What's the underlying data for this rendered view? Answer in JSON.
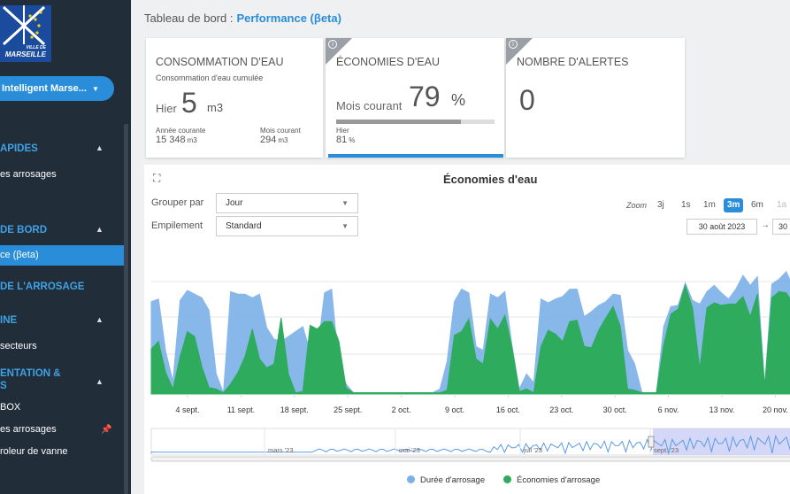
{
  "sidebar": {
    "logo": {
      "line1": "VILLE DE",
      "line2": "MARSEILLE"
    },
    "site_selector": "Intelligent Marse...",
    "sections": [
      {
        "label": "APIDES",
        "items": [
          "es arrosages"
        ]
      },
      {
        "label": " DE BORD",
        "items": [
          "ce (βeta)"
        ]
      },
      {
        "label": " DE L'ARROSAGE",
        "items": []
      },
      {
        "label": "INE",
        "items": [
          "secteurs"
        ]
      },
      {
        "label": "ENTATION &",
        "label2": "S",
        "items": [
          "BOX",
          "es arrosages",
          "roleur de vanne"
        ]
      }
    ]
  },
  "header": {
    "prefix": "Tableau de bord :",
    "page": "Performance (βeta)"
  },
  "cards": {
    "consumption": {
      "title": "CONSOMMATION D'EAU",
      "subtitle": "Consommation d'eau cumulée",
      "main_label": "Hier",
      "main_value": "5",
      "main_unit": "m3",
      "year_label": "Année courante",
      "year_value": "15 348",
      "year_unit": "m3",
      "month_label": "Mois courant",
      "month_value": "294",
      "month_unit": "m3"
    },
    "savings": {
      "title": "ÉCONOMIES D'EAU",
      "main_label": "Mois courant",
      "main_value": "79",
      "main_unit": "%",
      "progress": 0.79,
      "yesterday_label": "Hier",
      "yesterday_value": "81",
      "yesterday_unit": "%"
    },
    "alerts": {
      "title": "NOMBRE D'ALERTES",
      "value": "0"
    }
  },
  "panel": {
    "title": "Économies d'eau",
    "group_label": "Grouper par",
    "group_value": "Jour",
    "stack_label": "Empilement",
    "stack_value": "Standard",
    "zoom_label": "Zoom",
    "zoom_options": [
      "3j",
      "1s",
      "1m",
      "3m",
      "6m",
      "1a"
    ],
    "zoom_selected": "3m",
    "date_from": "30 août 2023",
    "date_to": "30",
    "arrow": "→",
    "icons": [
      "fullscreen-icon",
      "chevron-down-icon"
    ]
  },
  "chart_data": {
    "type": "area",
    "x_ticks": [
      "4 sept.",
      "11 sept.",
      "18 sept.",
      "25 sept.",
      "2 oct.",
      "9 oct.",
      "16 oct.",
      "23 oct.",
      "30 oct.",
      "6 nov.",
      "13 nov.",
      "20 nov."
    ],
    "navigator_labels": [
      "mars '23",
      "mai '23",
      "juil '23",
      "sept. '23"
    ],
    "ylim": [
      0,
      1
    ],
    "series": [
      {
        "name": "Durée d'arrosage",
        "color": "#7cb0e8",
        "values": [
          0.74,
          0.76,
          0.34,
          0.1,
          0.75,
          0.83,
          0.8,
          0.77,
          0.67,
          0.16,
          0.01,
          0.82,
          0.8,
          0.8,
          0.77,
          0.8,
          0.53,
          0.44,
          0.42,
          0.46,
          0.5,
          0.54,
          0.34,
          0.32,
          0.81,
          0.84,
          0.22,
          0.08,
          0.01,
          0.01,
          0.01,
          0.01,
          0.01,
          0.01,
          0.01,
          0.01,
          0.01,
          0.01,
          0.01,
          0.01,
          0.04,
          0.26,
          0.74,
          0.84,
          0.81,
          0.38,
          0.35,
          0.8,
          0.77,
          0.82,
          0.38,
          0.04,
          0.16,
          0.09,
          0.76,
          0.73,
          0.76,
          0.78,
          0.84,
          0.84,
          0.62,
          0.66,
          0.71,
          0.74,
          0.8,
          0.79,
          0.35,
          0.24,
          0.01,
          0.01,
          0.01,
          0.54,
          0.7,
          0.71,
          0.89,
          0.75,
          0.72,
          0.82,
          0.87,
          0.81,
          0.76,
          0.84,
          0.95,
          0.87,
          0.94,
          0.06,
          0.88,
          0.92,
          0.98,
          0.85
        ]
      },
      {
        "name": "Économies d'arrosage",
        "color": "#2eab5c",
        "values": [
          0.36,
          0.42,
          0.17,
          0.04,
          0.3,
          0.5,
          0.46,
          0.22,
          0.05,
          0.04,
          0.01,
          0.08,
          0.17,
          0.3,
          0.52,
          0.28,
          0.21,
          0.24,
          0.61,
          0.16,
          0.01,
          0.02,
          0.55,
          0.52,
          0.58,
          0.58,
          0.42,
          0.05,
          0.01,
          0.01,
          0.01,
          0.01,
          0.01,
          0.01,
          0.01,
          0.01,
          0.01,
          0.01,
          0.01,
          0.01,
          0.01,
          0.03,
          0.47,
          0.5,
          0.6,
          0.28,
          0.24,
          0.6,
          0.52,
          0.63,
          0.37,
          0.02,
          0.04,
          0.01,
          0.38,
          0.51,
          0.48,
          0.42,
          0.58,
          0.59,
          0.38,
          0.37,
          0.51,
          0.61,
          0.7,
          0.54,
          0.04,
          0.03,
          0.01,
          0.01,
          0.01,
          0.39,
          0.64,
          0.68,
          0.87,
          0.69,
          0.2,
          0.69,
          0.73,
          0.71,
          0.72,
          0.72,
          0.78,
          0.62,
          0.8,
          0.06,
          0.77,
          0.82,
          0.81,
          0.72
        ]
      }
    ]
  }
}
